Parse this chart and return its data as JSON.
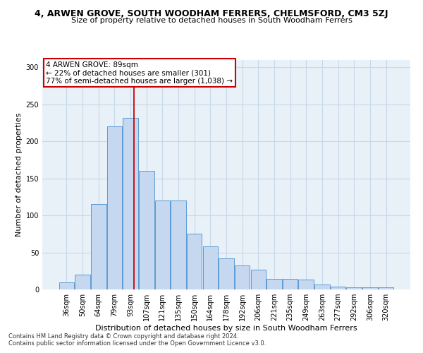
{
  "title": "4, ARWEN GROVE, SOUTH WOODHAM FERRERS, CHELMSFORD, CM3 5ZJ",
  "subtitle": "Size of property relative to detached houses in South Woodham Ferrers",
  "xlabel": "Distribution of detached houses by size in South Woodham Ferrers",
  "ylabel": "Number of detached properties",
  "categories": [
    "36sqm",
    "50sqm",
    "64sqm",
    "79sqm",
    "93sqm",
    "107sqm",
    "121sqm",
    "135sqm",
    "150sqm",
    "164sqm",
    "178sqm",
    "192sqm",
    "206sqm",
    "221sqm",
    "235sqm",
    "249sqm",
    "263sqm",
    "277sqm",
    "292sqm",
    "306sqm",
    "320sqm"
  ],
  "values": [
    10,
    20,
    115,
    220,
    232,
    160,
    120,
    120,
    75,
    58,
    42,
    32,
    27,
    14,
    14,
    13,
    7,
    4,
    3,
    3,
    3
  ],
  "bar_color": "#c5d8f0",
  "bar_edge_color": "#5b9bd5",
  "annotation_text": "4 ARWEN GROVE: 89sqm\n← 22% of detached houses are smaller (301)\n77% of semi-detached houses are larger (1,038) →",
  "annotation_box_color": "#ffffff",
  "annotation_box_edge": "#cc0000",
  "footer_line1": "Contains HM Land Registry data © Crown copyright and database right 2024.",
  "footer_line2": "Contains public sector information licensed under the Open Government Licence v3.0.",
  "bg_color": "#ffffff",
  "plot_bg_color": "#e8f0f8",
  "grid_color": "#c8d8e8",
  "ylim": [
    0,
    310
  ],
  "yticks": [
    0,
    50,
    100,
    150,
    200,
    250,
    300
  ],
  "title_fontsize": 9,
  "subtitle_fontsize": 8,
  "axis_label_fontsize": 8,
  "tick_fontsize": 7,
  "annotation_fontsize": 7.5,
  "footer_fontsize": 6
}
